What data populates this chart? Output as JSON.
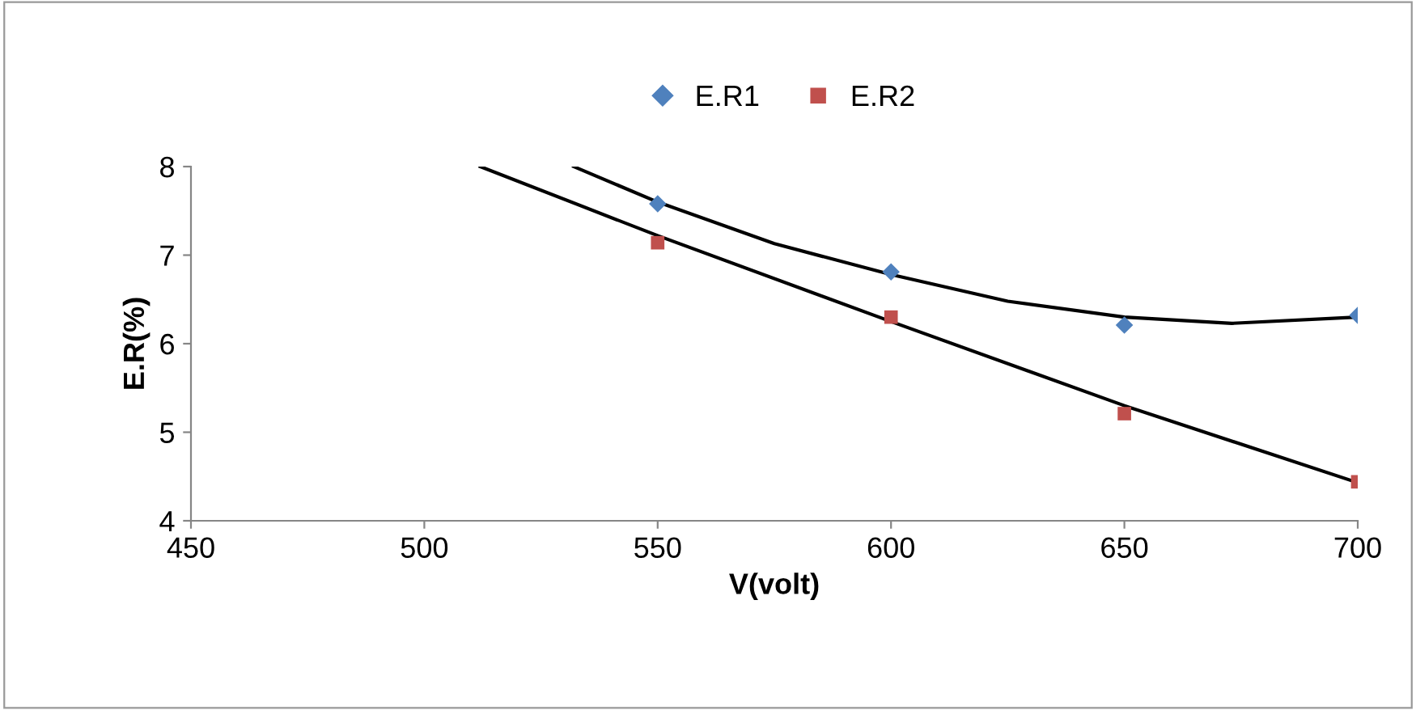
{
  "chart_data": {
    "type": "scatter",
    "xlabel": "V(volt)",
    "ylabel": "E.R(%)",
    "x": [
      550,
      600,
      650,
      700
    ],
    "series": [
      {
        "name": "E.R1",
        "color": "#4f81bd",
        "marker": "diamond",
        "values": [
          7.58,
          6.81,
          6.21,
          6.32
        ]
      },
      {
        "name": "E.R2",
        "color": "#c0504d",
        "marker": "square",
        "values": [
          7.14,
          6.3,
          5.21,
          4.44
        ]
      },
      {
        "type": "line",
        "color": "#000000",
        "marker": "none",
        "line_style": "solid",
        "x": [
          532,
          550,
          575,
          600,
          625,
          650,
          673,
          700
        ],
        "values": [
          8,
          7.6,
          7.13,
          6.78,
          6.48,
          6.3,
          6.23,
          6.3
        ]
      },
      {
        "type": "line",
        "color": "#000000",
        "marker": "none",
        "line_style": "solid",
        "x": [
          512,
          550,
          600,
          650,
          700
        ],
        "values": [
          8,
          7.22,
          6.25,
          5.3,
          4.43
        ]
      }
    ],
    "xlim": [
      450,
      700
    ],
    "ylim": [
      4,
      8
    ],
    "xticks": [
      450,
      500,
      550,
      600,
      650,
      700
    ],
    "yticks": [
      4,
      5,
      6,
      7,
      8
    ],
    "grid": false,
    "legend": "top"
  }
}
